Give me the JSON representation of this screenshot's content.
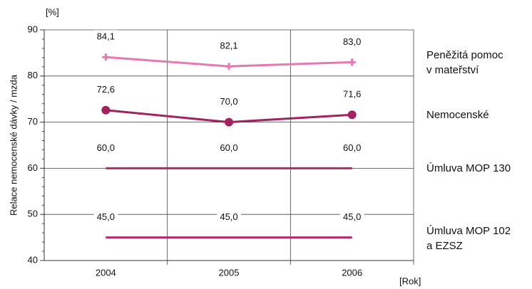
{
  "chart_data": {
    "type": "line",
    "y_unit": "[%]",
    "x_unit": "[Rok]",
    "ylabel": "Relace nemocenské dávky / mzda",
    "categories": [
      "2004",
      "2005",
      "2006"
    ],
    "ylim": [
      40,
      90
    ],
    "yticks": [
      40,
      50,
      60,
      70,
      80,
      90
    ],
    "grid": true,
    "series": [
      {
        "name": "Peněžitá pomoc\nv mateřství",
        "color": "#e878b0",
        "marker": "plus",
        "values": [
          84.1,
          82.1,
          83.0
        ],
        "value_labels": [
          "84,1",
          "82,1",
          "83,0"
        ]
      },
      {
        "name": "Nemocenské",
        "color": "#a3235f",
        "marker": "circle",
        "values": [
          72.6,
          70.0,
          71.6
        ],
        "value_labels": [
          "72,6",
          "70,0",
          "71,6"
        ]
      },
      {
        "name": "Úmluva MOP 130",
        "color": "#b02a6c",
        "marker": "none",
        "values": [
          60.0,
          60.0,
          60.0
        ],
        "value_labels": [
          "60,0",
          "60,0",
          "60,0"
        ]
      },
      {
        "name": "Úmluva MOP 102\na EZSZ",
        "color": "#b02a6c",
        "marker": "none",
        "values": [
          45.0,
          45.0,
          45.0
        ],
        "value_labels": [
          "45,0",
          "45,0",
          "45,0"
        ]
      }
    ]
  }
}
